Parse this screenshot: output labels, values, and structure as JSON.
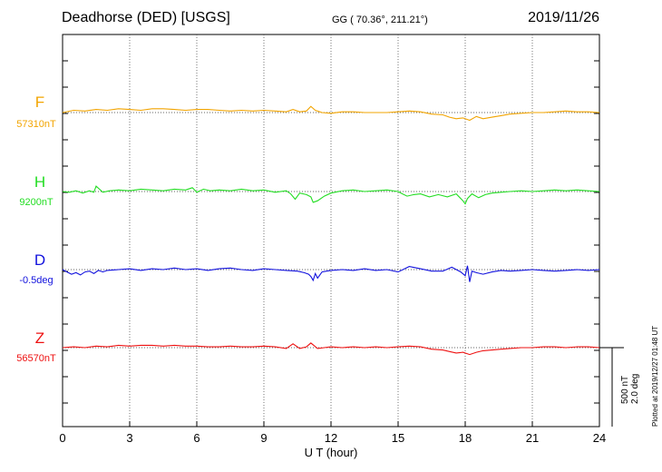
{
  "header": {
    "title": "Deadhorse (DED)  [USGS]",
    "coords": "GG ( 70.36°, 211.21°)",
    "date": "2019/11/26"
  },
  "side_note": "Plotted at 2019/12/27 01:48 UT",
  "chart_data": {
    "type": "line",
    "xlabel": "U T (hour)",
    "x_ticks": [
      "0",
      "3",
      "6",
      "9",
      "12",
      "15",
      "18",
      "21",
      "24"
    ],
    "xlim": [
      0,
      24
    ],
    "grid": "vertical dotted at every 3 h, horizontal dotted baselines",
    "scale_bar": {
      "nT": "500 nT",
      "deg": "2.0 deg"
    },
    "series": [
      {
        "name": "F",
        "baseline": "57310nT",
        "color": "#f2a400",
        "x": [
          0,
          0.5,
          1,
          1.5,
          2,
          2.5,
          3,
          3.5,
          4,
          4.5,
          5,
          5.5,
          6,
          6.5,
          7,
          7.5,
          8,
          8.5,
          9,
          9.5,
          10,
          10.3,
          10.6,
          10.9,
          11.1,
          11.3,
          11.6,
          12,
          12.5,
          13,
          13.5,
          14,
          14.5,
          15,
          15.5,
          16,
          16.5,
          17,
          17.3,
          17.6,
          17.9,
          18.2,
          18.5,
          18.8,
          19.2,
          19.6,
          20,
          20.5,
          21,
          21.5,
          22,
          22.5,
          23,
          23.5,
          24
        ],
        "y": [
          0,
          3,
          2,
          4,
          3,
          5,
          4,
          3,
          5,
          5,
          4,
          3,
          4,
          4,
          3,
          2,
          3,
          2,
          3,
          2,
          1,
          4,
          1,
          2,
          8,
          3,
          0,
          -1,
          1,
          1,
          0,
          0,
          0,
          1,
          2,
          1,
          -2,
          -3,
          -6,
          -8,
          -7,
          -10,
          -5,
          -8,
          -6,
          -4,
          -2,
          -1,
          0,
          0,
          1,
          2,
          1,
          1,
          0
        ],
        "ylim": [
          -100,
          100
        ]
      },
      {
        "name": "H",
        "baseline": "9200nT",
        "color": "#22dd22",
        "x": [
          0,
          0.3,
          0.6,
          0.9,
          1.2,
          1.4,
          1.5,
          1.8,
          2.1,
          2.5,
          3,
          3.5,
          4,
          4.5,
          5,
          5.5,
          5.8,
          6,
          6.3,
          6.6,
          7,
          7.5,
          8,
          8.5,
          9,
          9.5,
          10,
          10.2,
          10.4,
          10.6,
          10.9,
          11.1,
          11.2,
          11.4,
          11.7,
          12,
          12.5,
          13,
          13.5,
          14,
          14.5,
          15,
          15.2,
          15.4,
          15.7,
          16,
          16.4,
          16.8,
          17.2,
          17.6,
          17.9,
          18.0,
          18.1,
          18.3,
          18.6,
          18.9,
          19.2,
          19.6,
          20,
          20.5,
          21,
          21.5,
          22,
          22.5,
          23,
          23.5,
          24
        ],
        "y": [
          0,
          -1,
          1,
          -2,
          1,
          -1,
          7,
          -1,
          1,
          2,
          1,
          3,
          2,
          1,
          3,
          2,
          5,
          -1,
          3,
          1,
          2,
          1,
          3,
          1,
          2,
          -1,
          1,
          -3,
          -10,
          -2,
          -4,
          -7,
          -14,
          -12,
          -6,
          -2,
          1,
          2,
          0,
          1,
          2,
          0,
          -3,
          -6,
          -4,
          -3,
          -7,
          -4,
          -7,
          -3,
          -12,
          -16,
          -9,
          -3,
          -8,
          -4,
          -2,
          -1,
          0,
          1,
          0,
          1,
          2,
          1,
          2,
          1,
          0
        ],
        "ylim": [
          -100,
          100
        ]
      },
      {
        "name": "D",
        "baseline": "-0.5deg",
        "color": "#1111dd",
        "x": [
          0,
          0.2,
          0.4,
          0.6,
          0.8,
          1,
          1.2,
          1.4,
          1.6,
          1.8,
          2,
          2.5,
          3,
          3.5,
          4,
          4.5,
          5,
          5.5,
          6,
          6.5,
          7,
          7.5,
          8,
          8.5,
          9,
          9.5,
          10,
          10.5,
          10.8,
          11,
          11.1,
          11.2,
          11.3,
          11.4,
          11.5,
          11.6,
          11.8,
          12,
          12.5,
          13,
          13.5,
          14,
          14.5,
          15,
          15.5,
          16,
          16.5,
          17,
          17.4,
          17.8,
          18,
          18.1,
          18.2,
          18.3,
          18.5,
          18.8,
          19.2,
          19.6,
          20,
          20.5,
          21,
          21.5,
          22,
          22.5,
          23,
          23.5,
          24
        ],
        "y": [
          0,
          -3,
          -6,
          -4,
          -7,
          -3,
          -2,
          -5,
          -1,
          -3,
          -1,
          0,
          1,
          -1,
          1,
          0,
          2,
          0,
          1,
          -1,
          1,
          2,
          0,
          -1,
          1,
          0,
          -1,
          -2,
          -4,
          -6,
          -9,
          -14,
          -5,
          -11,
          -7,
          -3,
          -2,
          -1,
          0,
          -1,
          1,
          -1,
          0,
          -3,
          4,
          1,
          -2,
          -2,
          3,
          -3,
          -8,
          5,
          -16,
          -2,
          -4,
          -6,
          -3,
          -1,
          -2,
          -1,
          0,
          -1,
          -2,
          -1,
          0,
          -1,
          0
        ],
        "ylim": [
          -100,
          100
        ]
      },
      {
        "name": "Z",
        "baseline": "56570nT",
        "color": "#ee1111",
        "x": [
          0,
          0.5,
          1,
          1.5,
          2,
          2.5,
          3,
          3.5,
          4,
          4.5,
          5,
          5.5,
          6,
          6.5,
          7,
          7.5,
          8,
          8.5,
          9,
          9.5,
          10,
          10.3,
          10.6,
          10.9,
          11.1,
          11.4,
          11.7,
          12,
          12.5,
          13,
          13.5,
          14,
          14.5,
          15,
          15.5,
          16,
          16.5,
          17,
          17.3,
          17.6,
          17.9,
          18.2,
          18.5,
          18.8,
          19.2,
          19.6,
          20,
          20.5,
          21,
          21.5,
          22,
          22.5,
          23,
          23.5,
          24
        ],
        "y": [
          0,
          1,
          0,
          2,
          1,
          3,
          2,
          3,
          3,
          2,
          3,
          2,
          2,
          1,
          1,
          2,
          1,
          1,
          2,
          1,
          -1,
          5,
          -1,
          1,
          6,
          -1,
          0,
          1,
          0,
          1,
          0,
          1,
          0,
          1,
          2,
          1,
          -2,
          -3,
          -5,
          -7,
          -6,
          -9,
          -6,
          -4,
          -3,
          -2,
          -1,
          0,
          0,
          1,
          1,
          0,
          1,
          1,
          0
        ],
        "ylim": [
          -100,
          100
        ]
      }
    ]
  }
}
